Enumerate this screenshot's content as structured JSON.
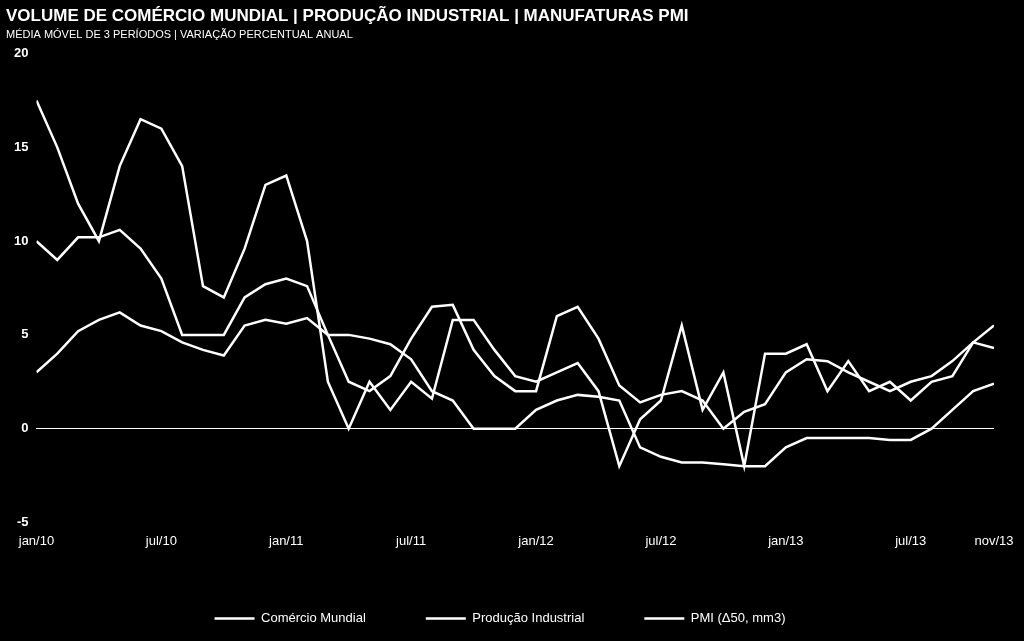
{
  "chart_data": {
    "type": "line",
    "title": "VOLUME DE COMÉRCIO MUNDIAL | PRODUÇÃO INDUSTRIAL | MANUFATURAS PMI",
    "subtitle": "MÉDIA MÓVEL DE 3 PERÍODOS | VARIAÇÃO PERCENTUAL ANUAL",
    "categories": [
      "jan/10",
      null,
      null,
      null,
      null,
      null,
      "jul/10",
      null,
      null,
      null,
      null,
      null,
      "jan/11",
      null,
      null,
      null,
      null,
      null,
      "jul/11",
      null,
      null,
      null,
      null,
      null,
      "jan/12",
      null,
      null,
      null,
      null,
      null,
      "jul/12",
      null,
      null,
      null,
      null,
      null,
      "jan/13",
      null,
      null,
      null,
      null,
      null,
      "jul/13",
      null,
      null,
      null,
      "nov/13"
    ],
    "series": [
      {
        "name": "Comércio Mundial",
        "color": "#ffffff",
        "values": [
          17.5,
          15,
          12,
          10,
          14,
          16.5,
          16,
          14,
          7.6,
          7,
          9.6,
          13,
          13.5,
          10,
          2.5,
          0,
          2.5,
          1,
          2.5,
          1.6,
          5.8,
          5.8,
          4.2,
          2.8,
          2.5,
          3,
          3.5,
          2,
          -2,
          0.5,
          1.5,
          5.5,
          1,
          3,
          -2,
          4,
          4,
          4.5,
          2,
          3.6,
          2,
          2.5,
          1.5,
          2.5,
          2.8,
          4.6,
          4.3
        ]
      },
      {
        "name": "Produção Industrial",
        "color": "#ffffff",
        "values": [
          10,
          9,
          10.2,
          10.2,
          10.6,
          9.6,
          8,
          5,
          5,
          5,
          7,
          7.7,
          8,
          7.6,
          5,
          2.5,
          2,
          2.8,
          4.8,
          6.5,
          6.6,
          4.2,
          2.8,
          2,
          2,
          6,
          6.5,
          4.8,
          2.3,
          1.4,
          1.8,
          2,
          1.5,
          0,
          0.9,
          1.3,
          3,
          3.7,
          3.6,
          3,
          2.5,
          2,
          2.5,
          2.8,
          3.6,
          4.6,
          5.5
        ]
      },
      {
        "name": "PMI (Δ50, mm3)",
        "color": "#ffffff",
        "values": [
          3,
          4,
          5.2,
          5.8,
          6.2,
          5.5,
          5.2,
          4.6,
          4.2,
          3.9,
          5.5,
          5.8,
          5.6,
          5.9,
          5,
          5,
          4.8,
          4.5,
          3.7,
          2,
          1.5,
          0,
          0,
          0,
          1,
          1.5,
          1.8,
          1.7,
          1.5,
          -1,
          -1.5,
          -1.8,
          -1.8,
          -1.9,
          -2,
          -2,
          -1,
          -0.5,
          -0.5,
          -0.5,
          -0.5,
          -0.6,
          -0.6,
          0,
          1,
          2,
          2.4
        ]
      }
    ],
    "ylim": [
      -5,
      20
    ],
    "yticks": [
      -5,
      0,
      5,
      10,
      15,
      20
    ],
    "grid": false,
    "legend": "bottom"
  }
}
